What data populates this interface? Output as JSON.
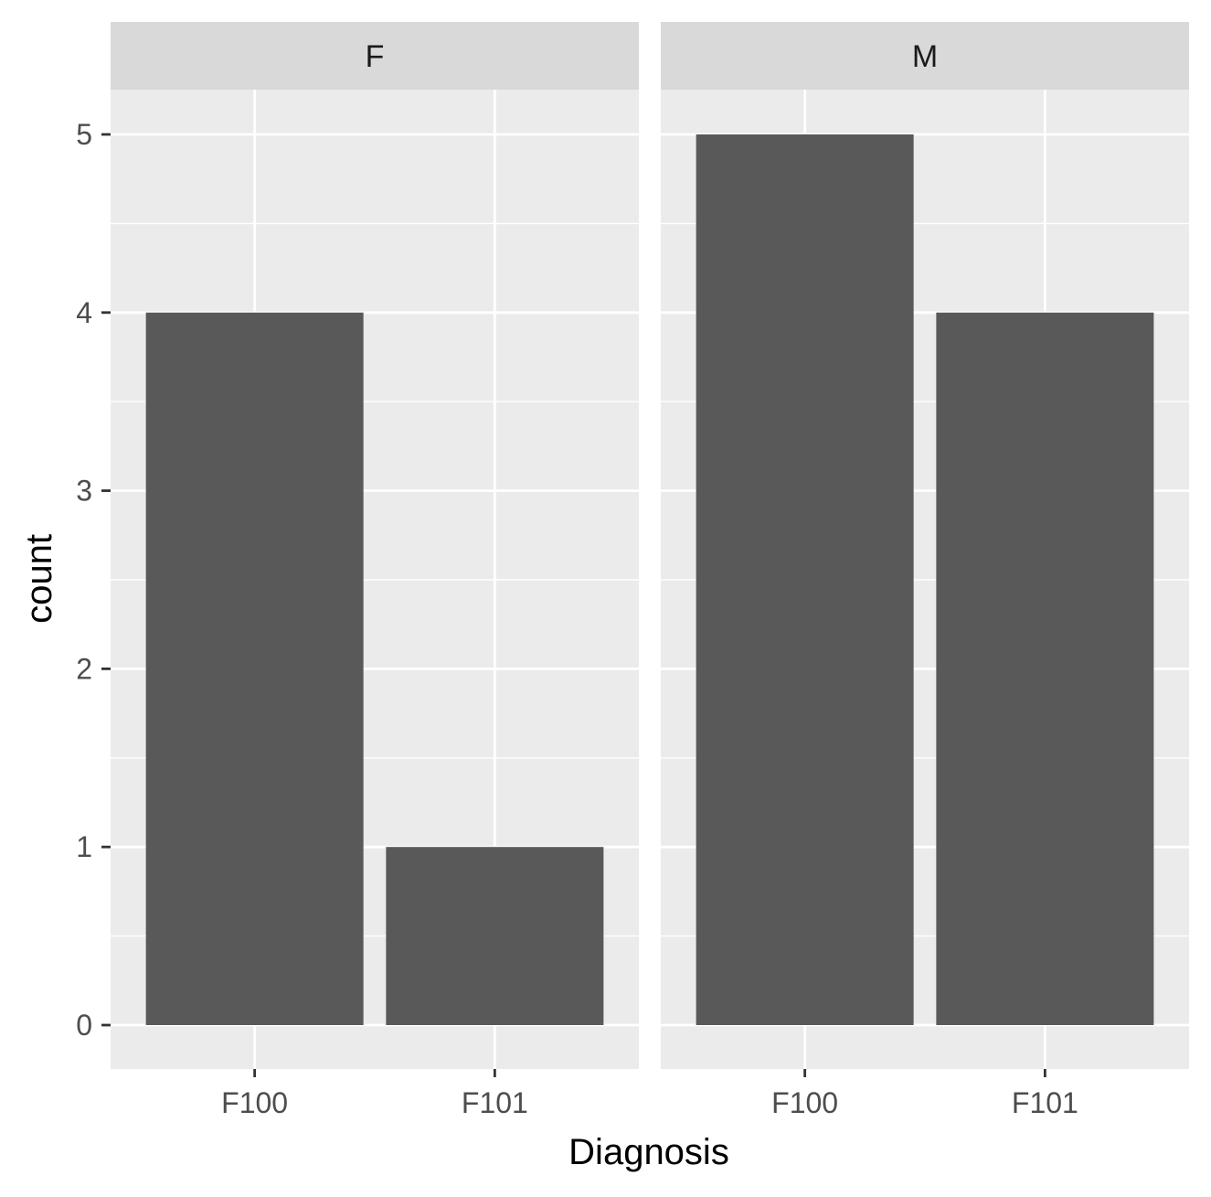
{
  "chart_data": {
    "type": "bar",
    "facet_by": "sex",
    "xlabel": "Diagnosis",
    "ylabel": "count",
    "categories": [
      "F100",
      "F101"
    ],
    "ylim": [
      0,
      5
    ],
    "yticks": [
      0,
      1,
      2,
      3,
      4,
      5
    ],
    "grid": true,
    "panels": [
      {
        "facet": "F",
        "values": [
          4,
          1
        ]
      },
      {
        "facet": "M",
        "values": [
          5,
          4
        ]
      }
    ],
    "colors": {
      "bar": "#595959",
      "panel_background": "#ebebeb",
      "strip_background": "#d9d9d9",
      "grid": "#ffffff",
      "tick": "#333333"
    }
  }
}
